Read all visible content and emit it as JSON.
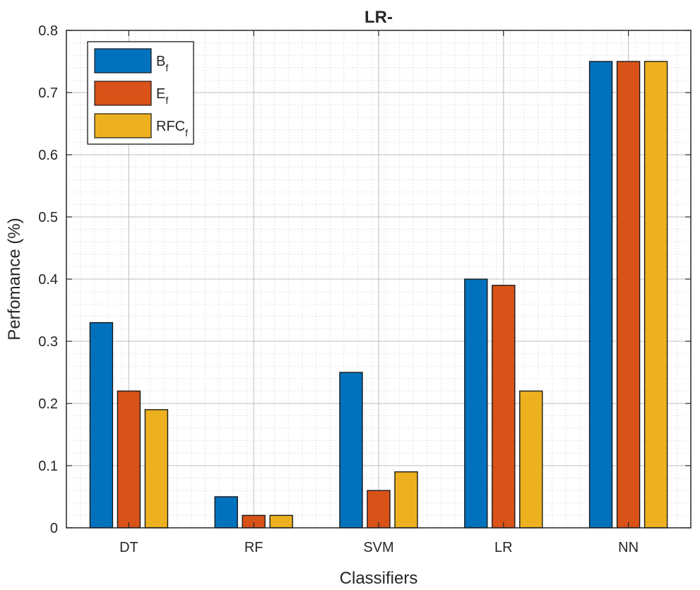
{
  "chart_data": {
    "type": "bar",
    "title": "LR-",
    "xlabel": "Classifiers",
    "ylabel": "Perfomance (%)",
    "categories": [
      "DT",
      "RF",
      "SVM",
      "LR",
      "NN"
    ],
    "series": [
      {
        "name": "B",
        "subscript": "f",
        "color": "#0072BD",
        "values": [
          0.33,
          0.05,
          0.25,
          0.4,
          0.75
        ]
      },
      {
        "name": "E",
        "subscript": "f",
        "color": "#D95319",
        "values": [
          0.22,
          0.02,
          0.06,
          0.39,
          0.75
        ]
      },
      {
        "name": "RFC",
        "subscript": "f",
        "color": "#EDB120",
        "values": [
          0.19,
          0.02,
          0.09,
          0.22,
          0.75
        ]
      }
    ],
    "ylim": [
      0,
      0.8
    ],
    "yticks": [
      "0",
      "0.1",
      "0.2",
      "0.3",
      "0.4",
      "0.5",
      "0.6",
      "0.7",
      "0.8"
    ],
    "grid": true,
    "minor_grid": true,
    "legend_position": "top-left"
  }
}
